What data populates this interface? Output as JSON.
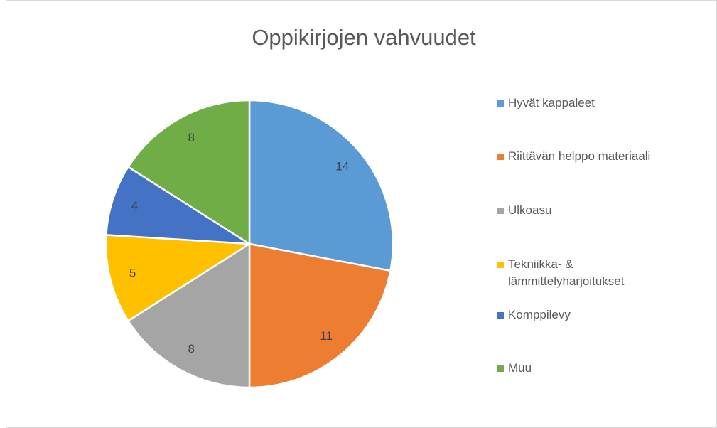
{
  "chart_data": {
    "type": "pie",
    "title": "Oppikirjojen vahvuudet",
    "categories": [
      "Hyvät kappaleet",
      "Riittävän helppo materiaali",
      "Ulkoasu",
      "Tekniikka- & lämmittelyharjoitukset",
      "Komppilevy",
      "Muu"
    ],
    "values": [
      14,
      11,
      8,
      5,
      4,
      8
    ],
    "colors": [
      "#5b9bd5",
      "#ed7d31",
      "#a5a5a5",
      "#ffc000",
      "#4472c4",
      "#70ad47"
    ],
    "legend": "right"
  }
}
